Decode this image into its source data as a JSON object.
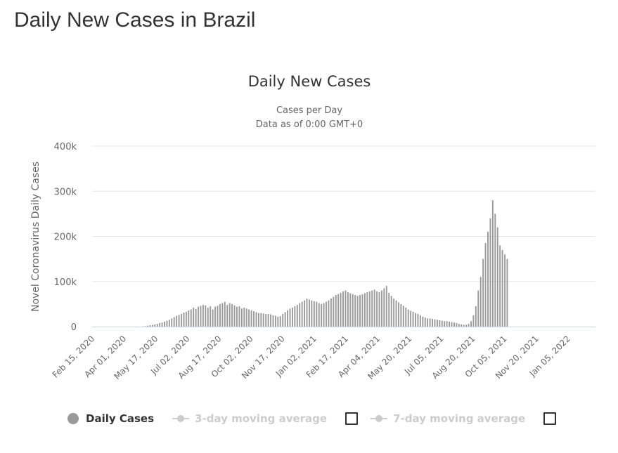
{
  "page": {
    "title": "Daily New Cases in Brazil"
  },
  "colors": {
    "bars": "#999999",
    "axis_line": "#ccd6eb",
    "grid": "#e6e6e6",
    "text": "#333333",
    "muted": "#666666",
    "legend_hidden": "#cccccc"
  },
  "legend": {
    "daily": "Daily Cases",
    "ma3": "3-day moving average",
    "ma7": "7-day moving average"
  },
  "chart_data": {
    "type": "bar",
    "title": "Daily New Cases",
    "subtitle_lines": [
      "Cases per Day",
      "Data as of 0:00 GMT+0"
    ],
    "xlabel": "",
    "ylabel": "Novel Coronavirus Daily Cases",
    "ylim": [
      0,
      400000
    ],
    "y_ticks": [
      {
        "value": 0,
        "label": "0"
      },
      {
        "value": 100000,
        "label": "100k"
      },
      {
        "value": 200000,
        "label": "200k"
      },
      {
        "value": 300000,
        "label": "300k"
      },
      {
        "value": 400000,
        "label": "400k"
      }
    ],
    "x_tick_labels": [
      "Feb 15, 2020",
      "Apr 01, 2020",
      "May 17, 2020",
      "Jul 02, 2020",
      "Aug 17, 2020",
      "Oct 02, 2020",
      "Nov 17, 2020",
      "Jan 02, 2021",
      "Feb 17, 2021",
      "Apr 04, 2021",
      "May 20, 2021",
      "Jul 05, 2021",
      "Aug 20, 2021",
      "Oct 05, 2021",
      "Nov 20, 2021",
      "Jan 05, 2022"
    ],
    "x_range": [
      "2020-02-15",
      "2022-02-14"
    ],
    "grid": true,
    "legend_position": "bottom",
    "series": [
      {
        "name": "Daily Cases",
        "approx_interval_days": 3.5,
        "start": "2020-02-15",
        "values": [
          0,
          0,
          0,
          0,
          0,
          0,
          0,
          0,
          0,
          0,
          0,
          0,
          0,
          0,
          0,
          0,
          0,
          0,
          200,
          0,
          0,
          500,
          1000,
          2000,
          3000,
          4000,
          5000,
          6000,
          8000,
          9000,
          11000,
          13000,
          15000,
          18000,
          21000,
          24000,
          26000,
          28000,
          31000,
          33000,
          36000,
          38000,
          42000,
          39000,
          44000,
          46000,
          48000,
          47000,
          42000,
          45000,
          38000,
          44000,
          46000,
          50000,
          52000,
          55000,
          48000,
          52000,
          50000,
          47000,
          44000,
          45000,
          40000,
          42000,
          40000,
          38000,
          36000,
          34000,
          32000,
          30000,
          30000,
          29000,
          28000,
          28000,
          27000,
          25000,
          24000,
          22000,
          23000,
          28000,
          32000,
          36000,
          40000,
          42000,
          45000,
          48000,
          52000,
          55000,
          58000,
          62000,
          60000,
          58000,
          56000,
          55000,
          52000,
          50000,
          52000,
          55000,
          58000,
          62000,
          66000,
          70000,
          72000,
          75000,
          78000,
          80000,
          76000,
          74000,
          72000,
          70000,
          68000,
          70000,
          72000,
          74000,
          76000,
          78000,
          80000,
          82000,
          78000,
          76000,
          80000,
          85000,
          90000,
          75000,
          68000,
          62000,
          58000,
          54000,
          50000,
          46000,
          42000,
          38000,
          35000,
          33000,
          30000,
          28000,
          25000,
          22000,
          20000,
          18000,
          18000,
          17000,
          16000,
          15000,
          14000,
          13000,
          12000,
          12000,
          11000,
          10000,
          9000,
          8000,
          6000,
          5000,
          4000,
          4000,
          6000,
          12000,
          25000,
          45000,
          80000,
          110000,
          150000,
          185000,
          210000,
          240000,
          280000,
          250000,
          220000,
          180000,
          170000,
          160000,
          150000
        ]
      }
    ]
  }
}
